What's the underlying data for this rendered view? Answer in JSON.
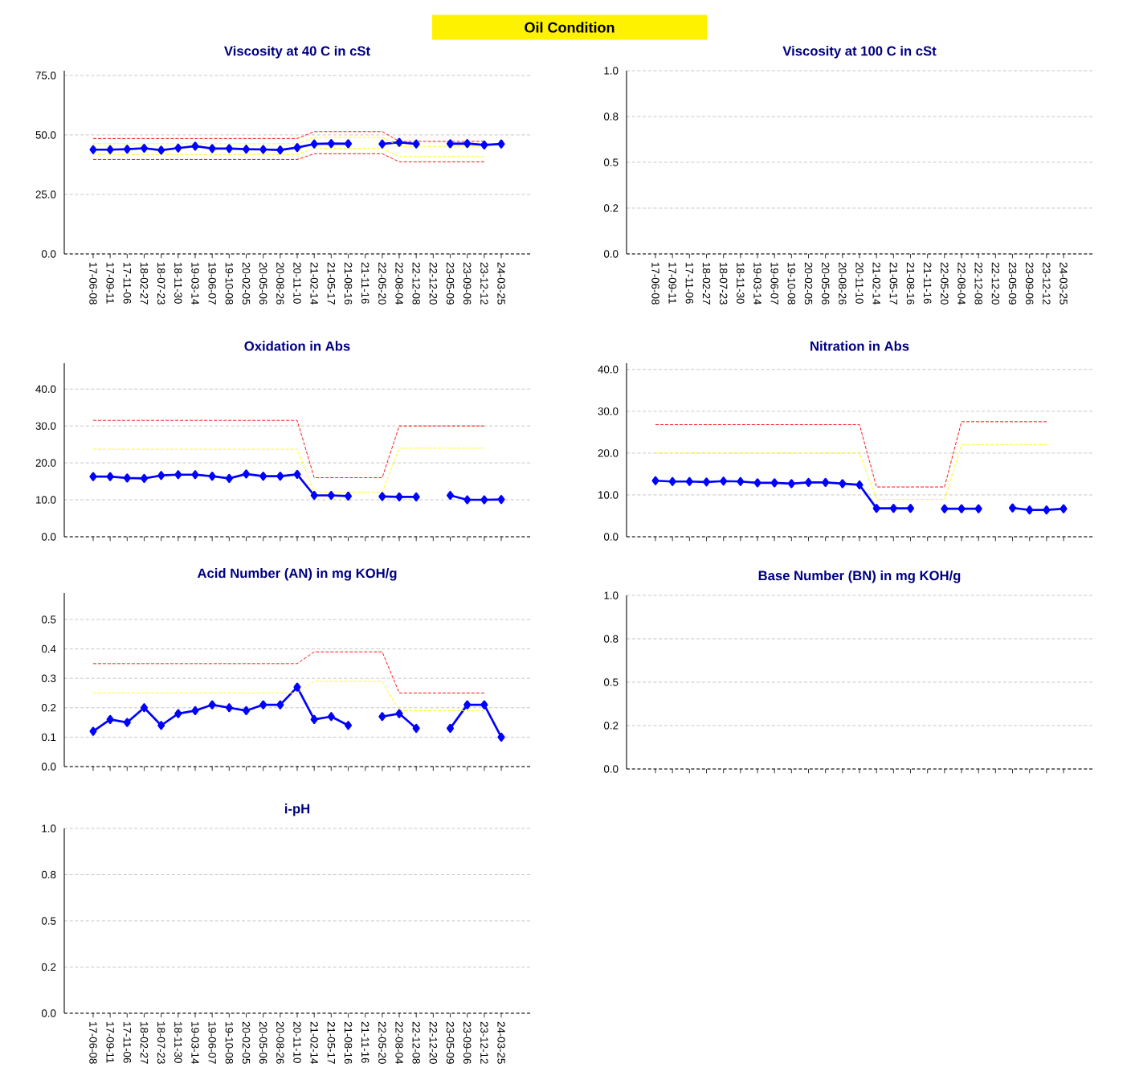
{
  "chart_data": [
    {
      "type": "other",
      "title": "Oil Condition"
    },
    {
      "type": "line",
      "title": "Viscosity at 40 C in cSt",
      "grid": "y",
      "categories": [
        "17-06-08",
        "17-09-11",
        "17-11-06",
        "18-02-27",
        "18-07-23",
        "18-11-30",
        "19-03-14",
        "19-06-07",
        "19-10-08",
        "20-02-05",
        "20-05-06",
        "20-08-26",
        "20-11-10",
        "21-02-14",
        "21-05-17",
        "21-08-16",
        "21-11-16",
        "22-05-20",
        "22-08-04",
        "22-12-08",
        "22-12-20",
        "23-05-09",
        "23-09-06",
        "23-12-12",
        "24-03-25"
      ],
      "ylim": [
        0,
        77
      ],
      "yticks": [
        {
          "value": 0,
          "label": "0.0"
        },
        {
          "value": 25,
          "label": "25.0"
        },
        {
          "value": 50,
          "label": "50.0"
        },
        {
          "value": 75,
          "label": "75.0"
        }
      ],
      "series": [
        {
          "color": "#0000ff",
          "marker": "diamond",
          "line_style": "solid",
          "values": [
            43.8,
            43.8,
            44.0,
            44.4,
            43.6,
            44.5,
            45.3,
            44.3,
            44.3,
            44.0,
            43.9,
            43.7,
            44.7,
            46.2,
            46.4,
            46.3,
            null,
            46.2,
            46.9,
            46.2,
            null,
            46.3,
            46.4,
            45.8,
            46.2
          ]
        },
        {
          "color": "#ff0000",
          "marker": "none",
          "line_style": "dashed",
          "values": [
            48.5,
            48.5,
            48.5,
            48.5,
            48.5,
            48.5,
            48.5,
            48.5,
            48.5,
            48.5,
            48.5,
            48.5,
            48.5,
            51.4,
            51.4,
            51.4,
            51.4,
            51.4,
            47.3,
            47.3,
            47.3,
            47.3,
            47.3,
            47.3,
            null
          ]
        },
        {
          "color": "#ffff00",
          "marker": "none",
          "line_style": "dashed",
          "values": [
            46.3,
            46.3,
            46.3,
            46.3,
            46.3,
            46.3,
            46.3,
            46.3,
            46.3,
            46.3,
            46.3,
            46.3,
            46.3,
            49.0,
            49.0,
            49.0,
            49.0,
            49.0,
            45.2,
            45.2,
            45.2,
            45.2,
            45.2,
            45.2,
            null
          ]
        },
        {
          "color": "#ffff00",
          "marker": "none",
          "line_style": "dashed",
          "values": [
            41.8,
            41.8,
            41.8,
            41.8,
            41.8,
            41.8,
            41.8,
            41.8,
            41.8,
            41.8,
            41.8,
            41.8,
            41.8,
            44.4,
            44.4,
            44.4,
            44.4,
            44.4,
            40.9,
            40.9,
            40.9,
            40.9,
            40.9,
            40.9,
            null
          ]
        },
        {
          "color": "#ff0000",
          "marker": "none",
          "line_style": "dashed",
          "values": [
            39.7,
            39.7,
            39.7,
            39.7,
            39.7,
            39.7,
            39.7,
            39.7,
            39.7,
            39.7,
            39.7,
            39.7,
            39.7,
            42.1,
            42.1,
            42.1,
            42.1,
            42.1,
            38.7,
            38.7,
            38.7,
            38.7,
            38.7,
            38.7,
            null
          ]
        }
      ]
    },
    {
      "type": "line",
      "title": "Viscosity at 100 C in cSt",
      "grid": "y",
      "categories": [
        "17-06-08",
        "17-09-11",
        "17-11-06",
        "18-02-27",
        "18-07-23",
        "18-11-30",
        "19-03-14",
        "19-06-07",
        "19-10-08",
        "20-02-05",
        "20-05-06",
        "20-08-26",
        "20-11-10",
        "21-02-14",
        "21-05-17",
        "21-08-16",
        "21-11-16",
        "22-05-20",
        "22-08-04",
        "22-12-08",
        "22-12-20",
        "23-05-09",
        "23-09-06",
        "23-12-12",
        "24-03-25"
      ],
      "ylim": [
        0,
        1
      ],
      "yticks": [
        {
          "value": 0,
          "label": "0.0"
        },
        {
          "value": 0.25,
          "label": "0.2"
        },
        {
          "value": 0.5,
          "label": "0.5"
        },
        {
          "value": 0.75,
          "label": "0.8"
        },
        {
          "value": 1,
          "label": "1.0"
        }
      ]
    },
    {
      "type": "line",
      "title": "Oxidation in Abs",
      "grid": "y",
      "tick_labels": "y",
      "categories": [
        null,
        null,
        null,
        null,
        null,
        null,
        null,
        null,
        null,
        null,
        null,
        null,
        null,
        null,
        null,
        null,
        null,
        null,
        null,
        null,
        null,
        null,
        null,
        null,
        null
      ],
      "ylim": [
        0,
        47
      ],
      "yticks": [
        {
          "value": 0,
          "label": "0.0"
        },
        {
          "value": 10,
          "label": "10.0"
        },
        {
          "value": 20,
          "label": "20.0"
        },
        {
          "value": 30,
          "label": "30.0"
        },
        {
          "value": 40,
          "label": "40.0"
        }
      ],
      "series": [
        {
          "color": "#0000ff",
          "marker": "diamond",
          "line_style": "solid",
          "values": [
            16.3,
            16.3,
            15.9,
            15.8,
            16.6,
            16.8,
            16.8,
            16.4,
            15.8,
            17.0,
            16.4,
            16.4,
            16.9,
            11.2,
            11.2,
            11.0,
            null,
            10.9,
            10.8,
            10.8,
            null,
            11.2,
            10.0,
            10.0,
            10.1
          ]
        },
        {
          "color": "#ff0000",
          "marker": "none",
          "line_style": "dashed",
          "values": [
            31.5,
            31.5,
            31.5,
            31.5,
            31.5,
            31.5,
            31.5,
            31.5,
            31.5,
            31.5,
            31.5,
            31.5,
            31.5,
            16.0,
            16.0,
            16.0,
            16.0,
            16.0,
            30.0,
            30.0,
            30.0,
            30.0,
            30.0,
            30.0,
            null
          ]
        },
        {
          "color": "#ffff00",
          "marker": "none",
          "line_style": "dashed",
          "values": [
            23.7,
            23.7,
            23.7,
            23.7,
            23.7,
            23.7,
            23.7,
            23.7,
            23.7,
            23.7,
            23.7,
            23.7,
            23.7,
            12.1,
            12.1,
            12.1,
            12.1,
            12.1,
            24.0,
            24.0,
            24.0,
            24.0,
            24.0,
            24.0,
            null
          ]
        }
      ]
    },
    {
      "type": "line",
      "title": "Nitration in Abs",
      "grid": "y",
      "tick_labels": "y",
      "categories": [
        null,
        null,
        null,
        null,
        null,
        null,
        null,
        null,
        null,
        null,
        null,
        null,
        null,
        null,
        null,
        null,
        null,
        null,
        null,
        null,
        null,
        null,
        null,
        null,
        null
      ],
      "ylim": [
        0,
        41.5
      ],
      "yticks": [
        {
          "value": 0,
          "label": "0.0"
        },
        {
          "value": 10,
          "label": "10.0"
        },
        {
          "value": 20,
          "label": "20.0"
        },
        {
          "value": 30,
          "label": "30.0"
        },
        {
          "value": 40,
          "label": "40.0"
        }
      ],
      "series": [
        {
          "color": "#0000ff",
          "marker": "diamond",
          "line_style": "solid",
          "values": [
            13.4,
            13.2,
            13.2,
            13.1,
            13.3,
            13.2,
            12.9,
            12.9,
            12.7,
            13.0,
            13.0,
            12.7,
            12.4,
            6.8,
            6.8,
            6.8,
            null,
            6.7,
            6.7,
            6.7,
            null,
            6.9,
            6.4,
            6.4,
            6.7
          ]
        },
        {
          "color": "#ff0000",
          "marker": "none",
          "line_style": "dashed",
          "values": [
            26.8,
            26.8,
            26.8,
            26.8,
            26.8,
            26.8,
            26.8,
            26.8,
            26.8,
            26.8,
            26.8,
            26.8,
            26.8,
            11.9,
            11.9,
            11.9,
            11.9,
            11.9,
            27.5,
            27.5,
            27.5,
            27.5,
            27.5,
            27.5,
            null
          ]
        },
        {
          "color": "#ffff00",
          "marker": "none",
          "line_style": "dashed",
          "values": [
            20.0,
            20.0,
            20.0,
            20.0,
            20.0,
            20.0,
            20.0,
            20.0,
            20.0,
            20.0,
            20.0,
            20.0,
            20.0,
            8.9,
            8.9,
            8.9,
            8.9,
            8.9,
            22.0,
            22.0,
            22.0,
            22.0,
            22.0,
            22.0,
            null
          ]
        }
      ]
    },
    {
      "type": "line",
      "title": "Acid Number (AN) in mg KOH/g",
      "grid": "y",
      "tick_labels": "y",
      "categories": [
        null,
        null,
        null,
        null,
        null,
        null,
        null,
        null,
        null,
        null,
        null,
        null,
        null,
        null,
        null,
        null,
        null,
        null,
        null,
        null,
        null,
        null,
        null,
        null,
        null
      ],
      "ylim": [
        0,
        0.59
      ],
      "yticks": [
        {
          "value": 0,
          "label": "0.0"
        },
        {
          "value": 0.1,
          "label": "0.1"
        },
        {
          "value": 0.2,
          "label": "0.2"
        },
        {
          "value": 0.3,
          "label": "0.3"
        },
        {
          "value": 0.4,
          "label": "0.4"
        },
        {
          "value": 0.5,
          "label": "0.5"
        }
      ],
      "series": [
        {
          "color": "#0000ff",
          "marker": "diamond",
          "line_style": "solid",
          "values": [
            0.12,
            0.16,
            0.15,
            0.2,
            0.14,
            0.18,
            0.19,
            0.21,
            0.2,
            0.19,
            0.21,
            0.21,
            0.27,
            0.16,
            0.17,
            0.14,
            null,
            0.17,
            0.18,
            0.13,
            null,
            0.13,
            0.21,
            0.21,
            0.1
          ]
        },
        {
          "color": "#ff0000",
          "marker": "none",
          "line_style": "dashed",
          "values": [
            0.35,
            0.35,
            0.35,
            0.35,
            0.35,
            0.35,
            0.35,
            0.35,
            0.35,
            0.35,
            0.35,
            0.35,
            0.35,
            0.39,
            0.39,
            0.39,
            0.39,
            0.39,
            0.25,
            0.25,
            0.25,
            0.25,
            0.25,
            0.25,
            null
          ]
        },
        {
          "color": "#ffff00",
          "marker": "none",
          "line_style": "dashed",
          "values": [
            0.25,
            0.25,
            0.25,
            0.25,
            0.25,
            0.25,
            0.25,
            0.25,
            0.25,
            0.25,
            0.25,
            0.25,
            0.25,
            0.29,
            0.29,
            0.29,
            0.29,
            0.29,
            0.19,
            0.19,
            0.19,
            0.19,
            0.19,
            0.19,
            null
          ]
        }
      ]
    },
    {
      "type": "line",
      "title": "Base Number (BN) in mg KOH/g",
      "grid": "y",
      "tick_labels": "y",
      "categories": [
        null,
        null,
        null,
        null,
        null,
        null,
        null,
        null,
        null,
        null,
        null,
        null,
        null,
        null,
        null,
        null,
        null,
        null,
        null,
        null,
        null,
        null,
        null,
        null,
        null
      ],
      "ylim": [
        0,
        1
      ],
      "yticks": [
        {
          "value": 0,
          "label": "0.0"
        },
        {
          "value": 0.25,
          "label": "0.2"
        },
        {
          "value": 0.5,
          "label": "0.5"
        },
        {
          "value": 0.75,
          "label": "0.8"
        },
        {
          "value": 1,
          "label": "1.0"
        }
      ]
    },
    {
      "type": "line",
      "title": "i-pH",
      "grid": "y",
      "categories": [
        "17-06-08",
        "17-09-11",
        "17-11-06",
        "18-02-27",
        "18-07-23",
        "18-11-30",
        "19-03-14",
        "19-06-07",
        "19-10-08",
        "20-02-05",
        "20-05-06",
        "20-08-26",
        "20-11-10",
        "21-02-14",
        "21-05-17",
        "21-08-16",
        "21-11-16",
        "22-05-20",
        "22-08-04",
        "22-12-08",
        "22-12-20",
        "23-05-09",
        "23-09-06",
        "23-12-12",
        "24-03-25"
      ],
      "ylim": [
        0,
        1
      ],
      "yticks": [
        {
          "value": 0,
          "label": "0.0"
        },
        {
          "value": 0.25,
          "label": "0.2"
        },
        {
          "value": 0.5,
          "label": "0.5"
        },
        {
          "value": 0.75,
          "label": "0.8"
        },
        {
          "value": 1,
          "label": "1.0"
        }
      ]
    }
  ]
}
